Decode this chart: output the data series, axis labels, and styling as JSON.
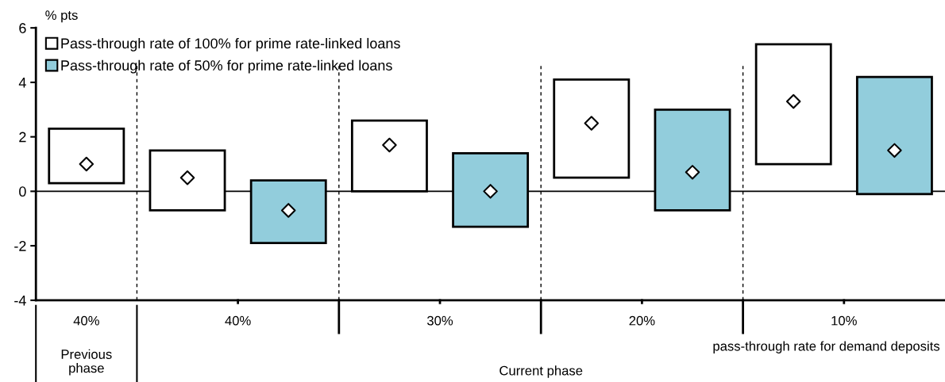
{
  "chart_data": {
    "type": "bar",
    "ylabel": "% pts",
    "xlabel": "pass-through rate for demand deposits",
    "categories": [
      "40%",
      "40%",
      "30%",
      "20%",
      "10%"
    ],
    "ylim": [
      -4,
      6
    ],
    "yticks": [
      -4,
      -2,
      0,
      2,
      4,
      6
    ],
    "series": [
      {
        "name": "Pass-through rate of 100% for prime rate-linked loans",
        "color": "#ffffff",
        "base": [
          0.3,
          -0.7,
          0.0,
          0.5,
          1.0
        ],
        "values": [
          2.0,
          2.2,
          2.6,
          3.6,
          4.4
        ]
      },
      {
        "name": "Pass-through rate of 50% for prime rate-linked loans",
        "color": "#92cddc",
        "base": [
          null,
          -1.9,
          -1.3,
          -0.7,
          -0.1
        ],
        "values": [
          null,
          2.3,
          2.7,
          3.7,
          4.3
        ]
      },
      {
        "type": "scatter",
        "color": "#ffffff",
        "marker": "diamond",
        "values": [
          1.0,
          0.5,
          1.7,
          2.5,
          3.3
        ]
      },
      {
        "type": "scatter",
        "color": "#ffffff",
        "marker": "diamond",
        "values": [
          null,
          -0.7,
          0.0,
          0.7,
          1.5
        ]
      }
    ],
    "ref_lines": [
      {
        "axis": "y",
        "value": 0,
        "color": "#000000",
        "line_style": "solid"
      }
    ],
    "annotations": [
      "Previous\nphase",
      "Current phase"
    ],
    "legend": "top left",
    "grid": false
  }
}
